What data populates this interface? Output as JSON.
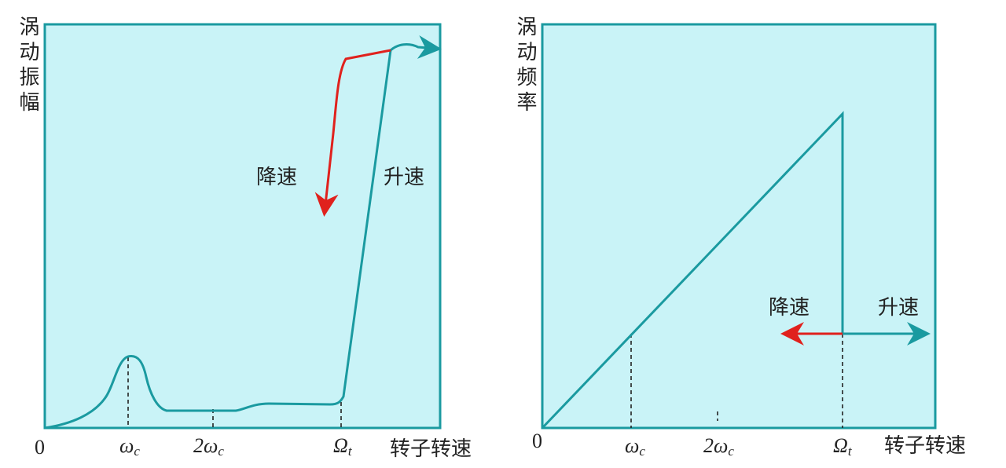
{
  "panels": [
    {
      "y_label": "涡动振幅",
      "x_label": "转子转速",
      "origin": "0",
      "ticks": [
        {
          "main": "ω",
          "sub": "c"
        },
        {
          "main": "2ω",
          "sub": "c"
        },
        {
          "main": "Ω",
          "sub": "t"
        }
      ],
      "slow_down": "降速",
      "speed_up": "升速"
    },
    {
      "y_label": "涡动频率",
      "x_label": "转子转速",
      "origin": "0",
      "ticks": [
        {
          "main": "ω",
          "sub": "c"
        },
        {
          "main": "2ω",
          "sub": "c"
        },
        {
          "main": "Ω",
          "sub": "t"
        }
      ],
      "slow_down": "降速",
      "speed_up": "升速"
    }
  ]
}
